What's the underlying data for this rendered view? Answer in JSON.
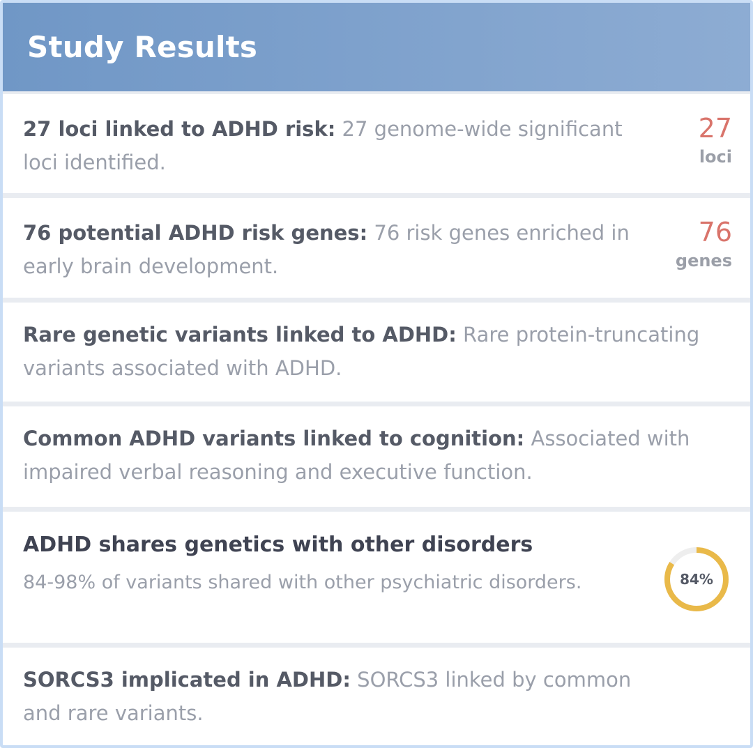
{
  "header": {
    "title": "Study Results"
  },
  "results": [
    {
      "lead": "27 loci linked to ADHD risk:",
      "desc": " 27 genome-wide significant loci identified.",
      "stat_value": "27",
      "stat_unit": "loci"
    },
    {
      "lead": "76 potential ADHD risk genes:",
      "desc": " 76 risk genes enriched in early brain development.",
      "stat_value": "76",
      "stat_unit": "genes"
    },
    {
      "lead": "Rare genetic variants linked to ADHD:",
      "desc": " Rare protein-truncating variants associated with ADHD."
    },
    {
      "lead": "Common ADHD variants linked to cognition:",
      "desc": " Associated with impaired verbal reasoning and executive function."
    },
    {
      "title": "ADHD shares genetics with other disorders",
      "subtitle": "84-98% of variants shared with other psychiatric disorders.",
      "ring_label": "84%",
      "ring_fraction": 0.84,
      "ring_color": "#e9b949",
      "ring_track_color": "#eeeeee"
    },
    {
      "lead": "SORCS3 implicated in ADHD:",
      "desc": " SORCS3 linked by common and rare variants."
    }
  ]
}
